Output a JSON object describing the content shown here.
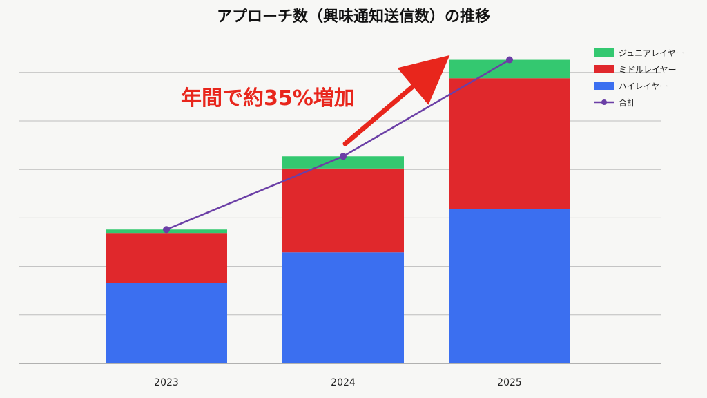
{
  "chart_data": {
    "type": "bar",
    "stacked": true,
    "title": "アプローチ数（興味通知送信数）の推移",
    "annotation": "年間で約35%増加",
    "categories": [
      "2023",
      "2024",
      "2025"
    ],
    "ylim": [
      0,
      600
    ],
    "grid": true,
    "legend_position": "top-right",
    "series": [
      {
        "name": "ハイレイヤー",
        "color": "#3b6ff0",
        "values": [
          166,
          229,
          318
        ]
      },
      {
        "name": "ミドルレイヤー",
        "color": "#e0282c",
        "values": [
          103,
          173,
          270
        ]
      },
      {
        "name": "ジュニアレイヤー",
        "color": "#34c870",
        "values": [
          7,
          25,
          38
        ]
      }
    ],
    "line": {
      "name": "合計",
      "color": "#6b3fa6",
      "values": [
        276,
        427,
        626
      ]
    },
    "legend_order": [
      "ジュニアレイヤー",
      "ミドルレイヤー",
      "ハイレイヤー",
      "合計"
    ]
  }
}
